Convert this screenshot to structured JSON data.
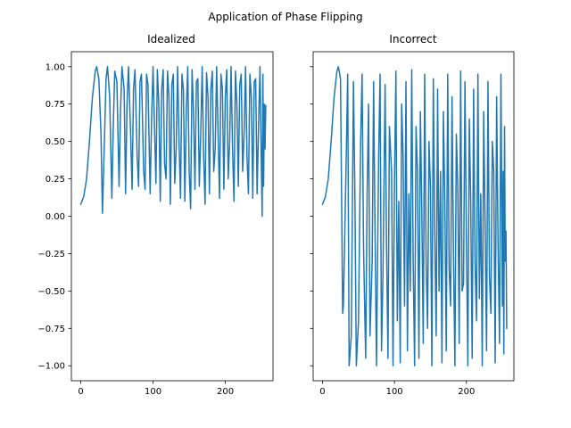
{
  "figure": {
    "suptitle": "Application of Phase Flipping",
    "color": "#1f77b4"
  },
  "chart_data": [
    {
      "type": "line",
      "title": "Idealized",
      "xlabel": "",
      "ylabel": "",
      "xlim": [
        -13,
        266
      ],
      "ylim": [
        -1.1,
        1.1
      ],
      "x_ticks": [
        0,
        100,
        200
      ],
      "y_ticks": [
        1.0,
        0.75,
        0.5,
        0.25,
        0.0,
        -0.25,
        -0.5,
        -0.75,
        -1.0
      ],
      "y_tick_labels": [
        "1.00",
        "0.75",
        "0.50",
        "0.25",
        "0.00",
        "−0.25",
        "−0.50",
        "−0.75",
        "−1.00"
      ],
      "series": [
        {
          "color": "#1f77b4",
          "points": [
            [
              0,
              0.08
            ],
            [
              4,
              0.13
            ],
            [
              8,
              0.25
            ],
            [
              12,
              0.5
            ],
            [
              16,
              0.79
            ],
            [
              20,
              0.97
            ],
            [
              22,
              1.0
            ],
            [
              25,
              0.92
            ],
            [
              28,
              0.55
            ],
            [
              30,
              0.02
            ],
            [
              33,
              0.55
            ],
            [
              35,
              0.92
            ],
            [
              37,
              1.0
            ],
            [
              40,
              0.8
            ],
            [
              43,
              0.12
            ],
            [
              45,
              0.6
            ],
            [
              47,
              0.97
            ],
            [
              50,
              0.9
            ],
            [
              53,
              0.2
            ],
            [
              55,
              0.7
            ],
            [
              57,
              1.0
            ],
            [
              60,
              0.85
            ],
            [
              62,
              0.15
            ],
            [
              64,
              0.75
            ],
            [
              66,
              1.0
            ],
            [
              69,
              0.55
            ],
            [
              71,
              0.18
            ],
            [
              73,
              0.85
            ],
            [
              75,
              0.98
            ],
            [
              78,
              0.4
            ],
            [
              80,
              0.2
            ],
            [
              82,
              0.9
            ],
            [
              84,
              0.95
            ],
            [
              87,
              0.3
            ],
            [
              89,
              0.18
            ],
            [
              91,
              0.95
            ],
            [
              93,
              0.88
            ],
            [
              96,
              0.15
            ],
            [
              98,
              0.65
            ],
            [
              100,
              1.0
            ],
            [
              102,
              0.6
            ],
            [
              104,
              0.22
            ],
            [
              106,
              0.98
            ],
            [
              108,
              0.75
            ],
            [
              110,
              0.1
            ],
            [
              112,
              0.85
            ],
            [
              114,
              0.98
            ],
            [
              116,
              0.35
            ],
            [
              118,
              0.25
            ],
            [
              120,
              0.97
            ],
            [
              122,
              0.8
            ],
            [
              124,
              0.08
            ],
            [
              126,
              0.88
            ],
            [
              128,
              0.95
            ],
            [
              130,
              0.22
            ],
            [
              132,
              0.45
            ],
            [
              134,
              1.0
            ],
            [
              136,
              0.5
            ],
            [
              138,
              0.12
            ],
            [
              140,
              0.95
            ],
            [
              142,
              0.85
            ],
            [
              144,
              0.1
            ],
            [
              146,
              0.7
            ],
            [
              148,
              1.0
            ],
            [
              150,
              0.3
            ],
            [
              152,
              0.05
            ],
            [
              154,
              0.98
            ],
            [
              156,
              0.7
            ],
            [
              158,
              0.18
            ],
            [
              160,
              0.9
            ],
            [
              162,
              0.92
            ],
            [
              164,
              0.2
            ],
            [
              166,
              0.55
            ],
            [
              168,
              1.0
            ],
            [
              170,
              0.4
            ],
            [
              172,
              0.08
            ],
            [
              174,
              0.96
            ],
            [
              176,
              0.8
            ],
            [
              178,
              0.15
            ],
            [
              180,
              0.85
            ],
            [
              182,
              0.97
            ],
            [
              184,
              0.3
            ],
            [
              186,
              0.45
            ],
            [
              188,
              1.0
            ],
            [
              190,
              0.55
            ],
            [
              192,
              0.12
            ],
            [
              194,
              0.95
            ],
            [
              196,
              0.85
            ],
            [
              198,
              0.18
            ],
            [
              200,
              0.8
            ],
            [
              202,
              0.98
            ],
            [
              204,
              0.25
            ],
            [
              206,
              0.5
            ],
            [
              208,
              1.0
            ],
            [
              210,
              0.45
            ],
            [
              212,
              0.1
            ],
            [
              214,
              0.97
            ],
            [
              216,
              0.75
            ],
            [
              218,
              0.2
            ],
            [
              220,
              0.88
            ],
            [
              222,
              0.95
            ],
            [
              224,
              0.3
            ],
            [
              226,
              0.55
            ],
            [
              228,
              1.0
            ],
            [
              230,
              0.4
            ],
            [
              232,
              0.15
            ],
            [
              234,
              0.95
            ],
            [
              236,
              0.8
            ],
            [
              238,
              0.12
            ],
            [
              240,
              0.9
            ],
            [
              242,
              0.92
            ],
            [
              244,
              0.15
            ],
            [
              246,
              0.6
            ],
            [
              248,
              1.0
            ],
            [
              250,
              0.3
            ],
            [
              251,
              0.0
            ],
            [
              252,
              0.95
            ],
            [
              253,
              0.2
            ],
            [
              254,
              0.75
            ],
            [
              255,
              0.45
            ],
            [
              256,
              0.74
            ]
          ]
        }
      ]
    },
    {
      "type": "line",
      "title": "Incorrect",
      "xlabel": "",
      "ylabel": "",
      "xlim": [
        -13,
        266
      ],
      "ylim": [
        -1.1,
        1.1
      ],
      "x_ticks": [
        0,
        100,
        200
      ],
      "y_ticks": [
        1.0,
        0.75,
        0.5,
        0.25,
        0.0,
        -0.25,
        -0.5,
        -0.75,
        -1.0
      ],
      "y_tick_labels": [
        "",
        "",
        "",
        "",
        "",
        "",
        "",
        "",
        ""
      ],
      "series": [
        {
          "color": "#1f77b4",
          "points": [
            [
              0,
              0.08
            ],
            [
              4,
              0.13
            ],
            [
              8,
              0.25
            ],
            [
              12,
              0.5
            ],
            [
              16,
              0.79
            ],
            [
              20,
              0.97
            ],
            [
              22,
              1.0
            ],
            [
              25,
              0.92
            ],
            [
              28,
              -0.65
            ],
            [
              29,
              -0.6
            ],
            [
              33,
              0.4
            ],
            [
              35,
              0.95
            ],
            [
              37,
              -1.0
            ],
            [
              40,
              -0.8
            ],
            [
              43,
              0.9
            ],
            [
              45,
              0.15
            ],
            [
              47,
              -1.0
            ],
            [
              50,
              -0.7
            ],
            [
              53,
              0.5
            ],
            [
              55,
              0.95
            ],
            [
              57,
              -0.2
            ],
            [
              60,
              -0.95
            ],
            [
              62,
              0.15
            ],
            [
              64,
              0.75
            ],
            [
              66,
              -0.8
            ],
            [
              69,
              -0.3
            ],
            [
              71,
              0.9
            ],
            [
              73,
              -0.1
            ],
            [
              75,
              -1.0
            ],
            [
              78,
              0.4
            ],
            [
              80,
              0.95
            ],
            [
              82,
              -0.9
            ],
            [
              84,
              -0.4
            ],
            [
              87,
              0.88
            ],
            [
              89,
              -0.2
            ],
            [
              91,
              -0.95
            ],
            [
              93,
              0.6
            ],
            [
              96,
              0.3
            ],
            [
              98,
              -1.0
            ],
            [
              100,
              0.2
            ],
            [
              102,
              0.97
            ],
            [
              104,
              -0.7
            ],
            [
              106,
              0.1
            ],
            [
              108,
              -0.98
            ],
            [
              110,
              0.75
            ],
            [
              112,
              0.4
            ],
            [
              114,
              -0.6
            ],
            [
              116,
              0.9
            ],
            [
              118,
              -0.9
            ],
            [
              120,
              0.15
            ],
            [
              122,
              -0.5
            ],
            [
              124,
              0.98
            ],
            [
              126,
              -0.3
            ],
            [
              128,
              -1.0
            ],
            [
              130,
              0.6
            ],
            [
              132,
              0.3
            ],
            [
              134,
              -0.95
            ],
            [
              136,
              0.7
            ],
            [
              138,
              0.05
            ],
            [
              140,
              -0.85
            ],
            [
              142,
              0.95
            ],
            [
              144,
              -0.3
            ],
            [
              146,
              -0.75
            ],
            [
              148,
              0.5
            ],
            [
              150,
              0.2
            ],
            [
              152,
              -1.0
            ],
            [
              154,
              0.92
            ],
            [
              156,
              -0.1
            ],
            [
              158,
              -0.8
            ],
            [
              160,
              0.85
            ],
            [
              162,
              -0.5
            ],
            [
              164,
              0.3
            ],
            [
              166,
              -0.98
            ],
            [
              168,
              0.7
            ],
            [
              170,
              0.1
            ],
            [
              172,
              -0.9
            ],
            [
              174,
              0.95
            ],
            [
              176,
              -0.35
            ],
            [
              178,
              -0.6
            ],
            [
              180,
              0.8
            ],
            [
              182,
              -0.25
            ],
            [
              184,
              -1.0
            ],
            [
              186,
              0.55
            ],
            [
              188,
              0.2
            ],
            [
              190,
              -0.85
            ],
            [
              192,
              0.97
            ],
            [
              194,
              -0.5
            ],
            [
              196,
              -0.45
            ],
            [
              198,
              0.9
            ],
            [
              200,
              -0.15
            ],
            [
              202,
              -1.0
            ],
            [
              204,
              0.65
            ],
            [
              206,
              0.1
            ],
            [
              208,
              -0.95
            ],
            [
              210,
              0.85
            ],
            [
              212,
              -0.3
            ],
            [
              214,
              -0.7
            ],
            [
              216,
              0.95
            ],
            [
              218,
              -0.55
            ],
            [
              220,
              0.15
            ],
            [
              222,
              -1.0
            ],
            [
              224,
              0.7
            ],
            [
              226,
              -0.05
            ],
            [
              228,
              -0.9
            ],
            [
              230,
              0.9
            ],
            [
              232,
              -0.4
            ],
            [
              234,
              -0.65
            ],
            [
              236,
              0.5
            ],
            [
              238,
              0.3
            ],
            [
              240,
              -0.98
            ],
            [
              242,
              0.8
            ],
            [
              244,
              -0.2
            ],
            [
              246,
              -0.85
            ],
            [
              248,
              0.95
            ],
            [
              250,
              -0.6
            ],
            [
              251,
              0.3
            ],
            [
              252,
              -0.92
            ],
            [
              253,
              0.6
            ],
            [
              254,
              -0.3
            ],
            [
              255,
              -0.1
            ],
            [
              256,
              -0.75
            ]
          ]
        }
      ]
    }
  ]
}
